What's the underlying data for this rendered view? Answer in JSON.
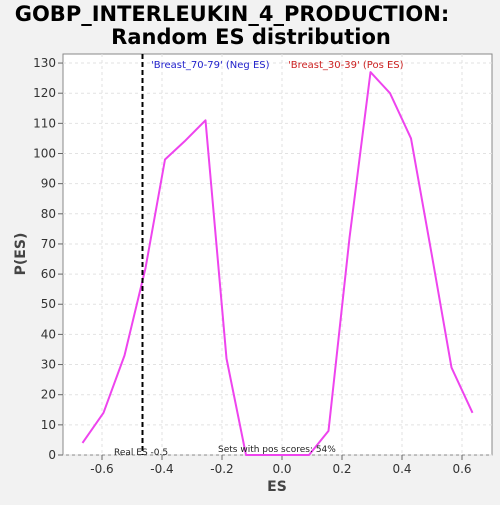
{
  "chart_data": {
    "type": "line",
    "title_line1": "GOBP_INTERLEUKIN_4_PRODUCTION:",
    "title_line2": "Random ES distribution",
    "xlabel": "ES",
    "ylabel": "P(ES)",
    "xlim": [
      -0.73,
      0.7
    ],
    "ylim": [
      0,
      133
    ],
    "xticks": [
      -0.6,
      -0.4,
      -0.2,
      0.0,
      0.2,
      0.4,
      0.6
    ],
    "xtick_labels": [
      "-0.6",
      "-0.4",
      "-0.2",
      "0.0",
      "0.2",
      "0.4",
      "0.6"
    ],
    "yticks": [
      0,
      10,
      20,
      30,
      40,
      50,
      60,
      70,
      80,
      90,
      100,
      110,
      120,
      130
    ],
    "ytick_labels": [
      "0",
      "10",
      "20",
      "30",
      "40",
      "50",
      "60",
      "70",
      "80",
      "90",
      "100",
      "110",
      "120",
      "130"
    ],
    "grid": true,
    "series": [
      {
        "color": "#ee44ee",
        "x": [
          -0.665,
          -0.595,
          -0.525,
          -0.455,
          -0.39,
          -0.325,
          -0.255,
          -0.185,
          -0.12,
          -0.05,
          0.02,
          0.09,
          0.155,
          0.225,
          0.295,
          0.36,
          0.43,
          0.5,
          0.565,
          0.635
        ],
        "y": [
          4,
          14,
          33,
          62,
          98,
          104,
          111,
          32,
          0,
          0,
          0,
          0,
          8,
          72,
          127,
          120,
          105,
          66,
          29,
          14
        ]
      }
    ],
    "real_es": -0.465,
    "legend": {
      "neg_label": "'Breast_70-79' (Neg ES)",
      "neg_color": "#2222cc",
      "pos_label": "'Breast_30-39' (Pos ES)",
      "pos_color": "#cc2222"
    },
    "annotations": {
      "real_es_label": "Real ES -0.5",
      "pos_scores_label": "Sets with pos scores: 54%"
    }
  }
}
